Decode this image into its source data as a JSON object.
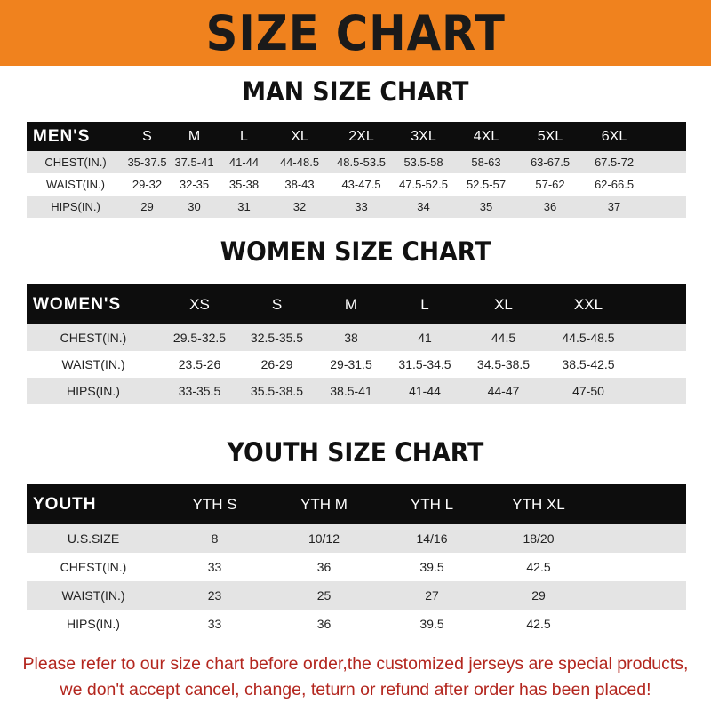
{
  "title": "SIZE CHART",
  "colors": {
    "banner": "#f0821e",
    "header_row": "#0d0d0d",
    "stripe": "#e4e4e4",
    "note": "#b3261e"
  },
  "men": {
    "title": "MAN SIZE CHART",
    "header": [
      "MEN'S",
      "S",
      "M",
      "L",
      "XL",
      "2XL",
      "3XL",
      "4XL",
      "5XL",
      "6XL"
    ],
    "rows": [
      [
        "CHEST(IN.)",
        "35-37.5",
        "37.5-41",
        "41-44",
        "44-48.5",
        "48.5-53.5",
        "53.5-58",
        "58-63",
        "63-67.5",
        "67.5-72"
      ],
      [
        "WAIST(IN.)",
        "29-32",
        "32-35",
        "35-38",
        "38-43",
        "43-47.5",
        "47.5-52.5",
        "52.5-57",
        "57-62",
        "62-66.5"
      ],
      [
        "HIPS(IN.)",
        "29",
        "30",
        "31",
        "32",
        "33",
        "34",
        "35",
        "36",
        "37"
      ]
    ]
  },
  "women": {
    "title": "WOMEN SIZE CHART",
    "header": [
      "WOMEN'S",
      "XS",
      "S",
      "M",
      "L",
      "XL",
      "XXL"
    ],
    "rows": [
      [
        "CHEST(IN.)",
        "29.5-32.5",
        "32.5-35.5",
        "38",
        "41",
        "44.5",
        "44.5-48.5"
      ],
      [
        "WAIST(IN.)",
        "23.5-26",
        "26-29",
        "29-31.5",
        "31.5-34.5",
        "34.5-38.5",
        "38.5-42.5"
      ],
      [
        "HIPS(IN.)",
        "33-35.5",
        "35.5-38.5",
        "38.5-41",
        "41-44",
        "44-47",
        "47-50"
      ]
    ]
  },
  "youth": {
    "title": "YOUTH SIZE CHART",
    "header": [
      "YOUTH",
      "YTH S",
      "YTH M",
      "YTH L",
      "YTH XL"
    ],
    "rows": [
      [
        "U.S.SIZE",
        "8",
        "10/12",
        "14/16",
        "18/20"
      ],
      [
        "CHEST(IN.)",
        "33",
        "36",
        "39.5",
        "42.5"
      ],
      [
        "WAIST(IN.)",
        "23",
        "25",
        "27",
        "29"
      ],
      [
        "HIPS(IN.)",
        "33",
        "36",
        "39.5",
        "42.5"
      ]
    ]
  },
  "note": {
    "line1": "Please refer to our size chart before order,the customized jerseys are special products,",
    "line2": "we don't accept cancel, change, teturn or refund after order has been placed!"
  }
}
